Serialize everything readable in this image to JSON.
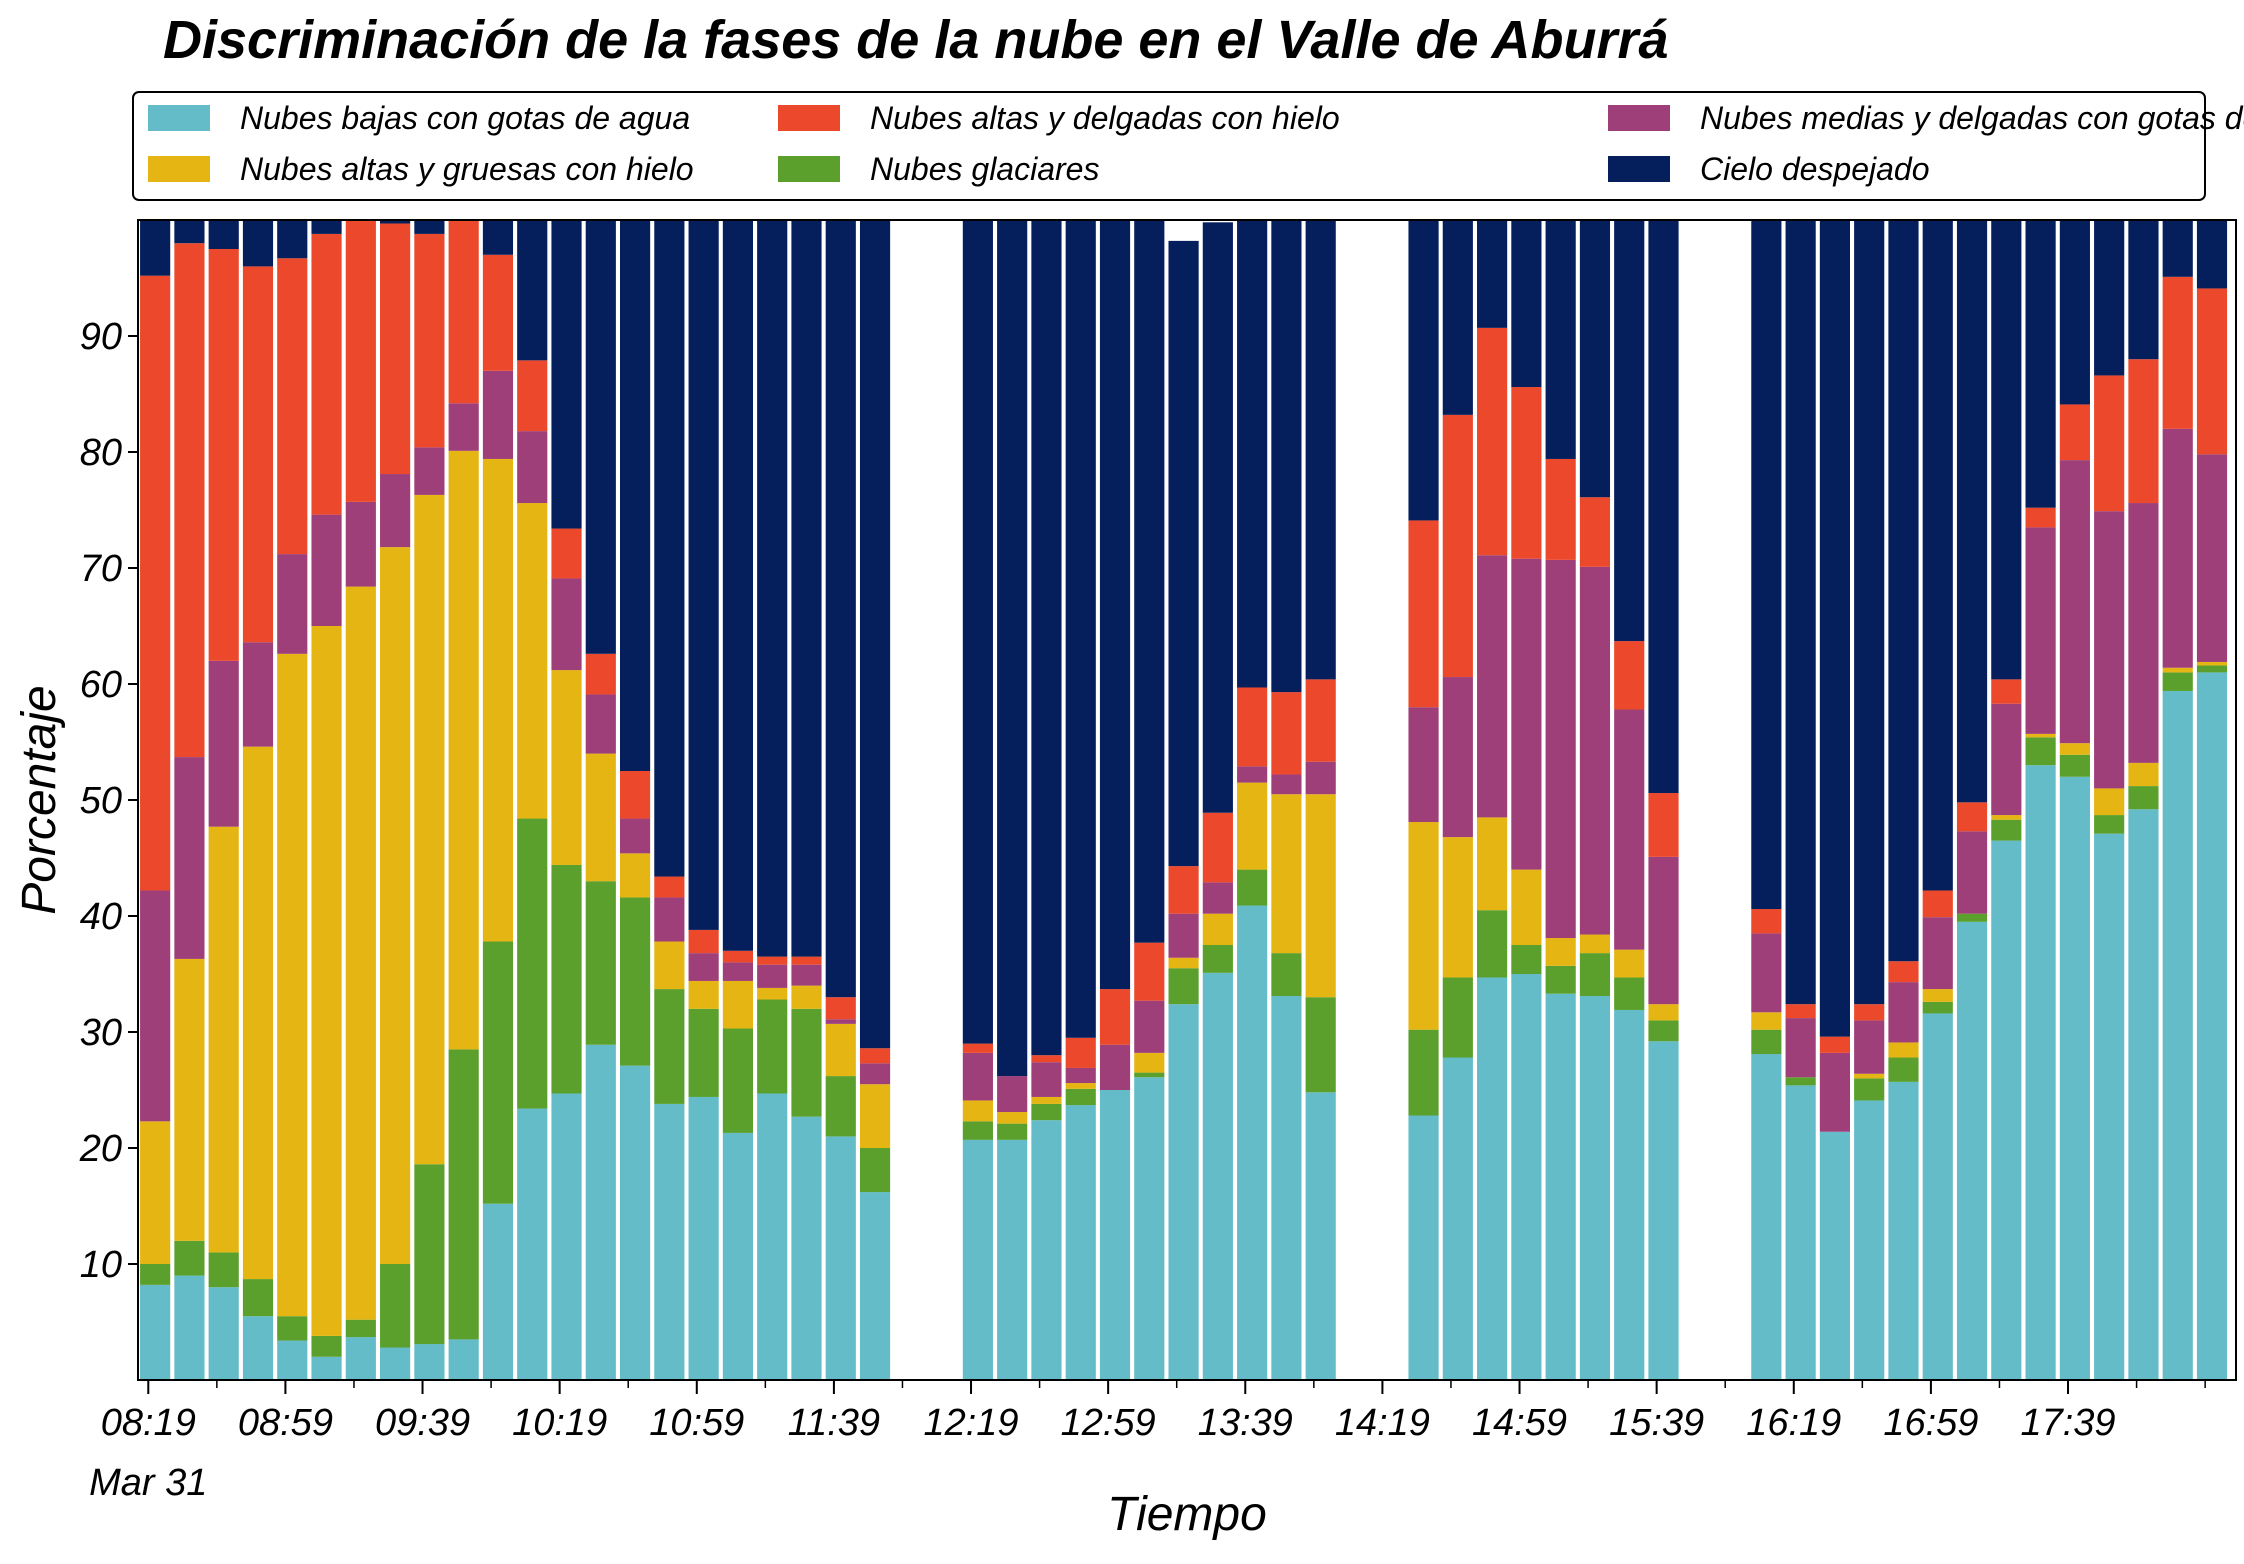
{
  "chart_data": {
    "type": "bar",
    "stacked": true,
    "title": "Discriminación de la fases de la nube en el Valle de Aburrá",
    "xlabel": "Tiempo",
    "ylabel": "Porcentaje",
    "ylim": [
      0,
      100
    ],
    "yticks": [
      10,
      20,
      30,
      40,
      50,
      60,
      70,
      80,
      90
    ],
    "x_start_minutes": 499,
    "x_end_minutes": 1082,
    "bar_interval_minutes": 10,
    "xticks": [
      {
        "label": "08:19",
        "minute": 499
      },
      {
        "label": "08:59",
        "minute": 539
      },
      {
        "label": "09:39",
        "minute": 579
      },
      {
        "label": "10:19",
        "minute": 619
      },
      {
        "label": "10:59",
        "minute": 659
      },
      {
        "label": "11:39",
        "minute": 699
      },
      {
        "label": "12:19",
        "minute": 739
      },
      {
        "label": "12:59",
        "minute": 779
      },
      {
        "label": "13:39",
        "minute": 819
      },
      {
        "label": "14:19",
        "minute": 859
      },
      {
        "label": "14:59",
        "minute": 899
      },
      {
        "label": "15:39",
        "minute": 939
      },
      {
        "label": "16:19",
        "minute": 979
      },
      {
        "label": "16:59",
        "minute": 1019
      },
      {
        "label": "17:39",
        "minute": 1059
      }
    ],
    "date_label": "Mar 31",
    "legend_position": "top",
    "grid": false,
    "series_info": [
      {
        "name": "Nubes bajas con gotas de agua",
        "color": "#63BCC8"
      },
      {
        "name": "Nubes glaciares",
        "color": "#5BA02C"
      },
      {
        "name": "Nubes altas y gruesas con hielo",
        "color": "#E4B513"
      },
      {
        "name": "Nubes medias y delgadas con gotas de agua",
        "color": "#9E3F79"
      },
      {
        "name": "Nubes altas y delgadas con hielo",
        "color": "#EC482B"
      },
      {
        "name": "Cielo despejado",
        "color": "#051F5C"
      }
    ],
    "legend_order": [
      0,
      2,
      4,
      1,
      3,
      5
    ],
    "bars": [
      {
        "minute": 501,
        "values": [
          8.2,
          1.8,
          12.3,
          19.9,
          53.0,
          4.8
        ]
      },
      {
        "minute": 511,
        "values": [
          9.0,
          3.0,
          24.3,
          17.4,
          44.3,
          2.0
        ]
      },
      {
        "minute": 521,
        "values": [
          8.0,
          3.0,
          36.7,
          14.3,
          35.5,
          2.5
        ]
      },
      {
        "minute": 531,
        "values": [
          5.5,
          3.2,
          45.9,
          9.0,
          32.4,
          4.0
        ]
      },
      {
        "minute": 541,
        "values": [
          3.4,
          2.1,
          57.1,
          8.6,
          25.5,
          3.3
        ]
      },
      {
        "minute": 551,
        "values": [
          2.0,
          1.8,
          61.2,
          9.6,
          24.2,
          1.2
        ]
      },
      {
        "minute": 561,
        "values": [
          3.7,
          1.5,
          63.2,
          7.3,
          24.3,
          0.0
        ]
      },
      {
        "minute": 571,
        "values": [
          2.8,
          7.2,
          61.8,
          6.3,
          21.6,
          0.3
        ]
      },
      {
        "minute": 581,
        "values": [
          3.1,
          15.5,
          57.7,
          4.1,
          18.4,
          1.2
        ]
      },
      {
        "minute": 591,
        "values": [
          3.5,
          25.0,
          51.6,
          4.1,
          15.8,
          0.0
        ]
      },
      {
        "minute": 601,
        "values": [
          15.2,
          22.6,
          41.6,
          7.6,
          10.0,
          3.0
        ]
      },
      {
        "minute": 611,
        "values": [
          23.4,
          25.0,
          27.2,
          6.2,
          6.1,
          12.1
        ]
      },
      {
        "minute": 621,
        "values": [
          24.7,
          19.7,
          16.8,
          7.9,
          4.3,
          26.6
        ]
      },
      {
        "minute": 631,
        "values": [
          28.9,
          14.1,
          11.0,
          5.1,
          3.5,
          37.4
        ]
      },
      {
        "minute": 641,
        "values": [
          27.1,
          14.5,
          3.8,
          3.0,
          4.1,
          47.5
        ]
      },
      {
        "minute": 651,
        "values": [
          23.8,
          9.9,
          4.1,
          3.8,
          1.8,
          56.6
        ]
      },
      {
        "minute": 661,
        "values": [
          24.4,
          7.6,
          2.4,
          2.4,
          2.0,
          61.2
        ]
      },
      {
        "minute": 671,
        "values": [
          21.3,
          9.0,
          4.1,
          1.6,
          1.0,
          63.0
        ]
      },
      {
        "minute": 681,
        "values": [
          24.7,
          8.1,
          1.0,
          2.0,
          0.7,
          63.5
        ]
      },
      {
        "minute": 691,
        "values": [
          22.7,
          9.3,
          2.0,
          1.8,
          0.7,
          63.5
        ]
      },
      {
        "minute": 701,
        "values": [
          21.0,
          5.2,
          4.5,
          0.4,
          1.9,
          67.0
        ]
      },
      {
        "minute": 711,
        "values": [
          16.2,
          3.8,
          5.5,
          1.8,
          1.3,
          71.4
        ]
      },
      {
        "minute": 741,
        "values": [
          20.7,
          1.6,
          1.8,
          4.1,
          0.8,
          71.0
        ]
      },
      {
        "minute": 751,
        "values": [
          20.7,
          1.4,
          1.0,
          3.1,
          0.0,
          73.8
        ]
      },
      {
        "minute": 761,
        "values": [
          22.4,
          1.4,
          0.6,
          3.0,
          0.6,
          72.0
        ]
      },
      {
        "minute": 771,
        "values": [
          23.7,
          1.4,
          0.5,
          1.3,
          2.6,
          70.5
        ]
      },
      {
        "minute": 781,
        "values": [
          25.0,
          0.0,
          0.0,
          3.9,
          4.8,
          66.3
        ]
      },
      {
        "minute": 791,
        "values": [
          26.1,
          0.4,
          1.7,
          4.5,
          5.0,
          62.3
        ]
      },
      {
        "minute": 801,
        "values": [
          32.4,
          3.1,
          0.9,
          3.8,
          4.1,
          53.9
        ]
      },
      {
        "minute": 811,
        "values": [
          35.1,
          2.4,
          2.7,
          2.7,
          6.0,
          50.9
        ]
      },
      {
        "minute": 821,
        "values": [
          40.9,
          3.1,
          7.5,
          1.4,
          6.8,
          40.3
        ]
      },
      {
        "minute": 831,
        "values": [
          33.1,
          3.7,
          13.7,
          1.7,
          7.1,
          40.7
        ]
      },
      {
        "minute": 841,
        "values": [
          24.8,
          8.2,
          17.5,
          2.8,
          7.1,
          39.6
        ]
      },
      {
        "minute": 871,
        "values": [
          22.8,
          7.4,
          17.9,
          9.9,
          16.1,
          25.9
        ]
      },
      {
        "minute": 881,
        "values": [
          27.8,
          6.9,
          12.1,
          13.8,
          22.6,
          16.8
        ]
      },
      {
        "minute": 891,
        "values": [
          34.7,
          5.8,
          8.0,
          22.6,
          19.6,
          9.3
        ]
      },
      {
        "minute": 901,
        "values": [
          35.0,
          2.5,
          6.5,
          26.8,
          14.8,
          14.4
        ]
      },
      {
        "minute": 911,
        "values": [
          33.3,
          2.4,
          2.4,
          32.6,
          8.7,
          20.6
        ]
      },
      {
        "minute": 921,
        "values": [
          33.1,
          3.7,
          1.6,
          31.7,
          6.0,
          23.9
        ]
      },
      {
        "minute": 931,
        "values": [
          31.9,
          2.8,
          2.4,
          20.7,
          5.9,
          36.3
        ]
      },
      {
        "minute": 941,
        "values": [
          29.2,
          1.8,
          1.4,
          12.7,
          5.5,
          49.4
        ]
      },
      {
        "minute": 971,
        "values": [
          28.1,
          2.1,
          1.5,
          6.8,
          2.1,
          59.4
        ]
      },
      {
        "minute": 981,
        "values": [
          25.4,
          0.7,
          0.0,
          5.1,
          1.2,
          67.6
        ]
      },
      {
        "minute": 991,
        "values": [
          21.4,
          0.0,
          0.0,
          6.8,
          1.4,
          70.4
        ]
      },
      {
        "minute": 1001,
        "values": [
          24.1,
          1.9,
          0.4,
          4.6,
          1.4,
          67.6
        ]
      },
      {
        "minute": 1011,
        "values": [
          25.7,
          2.1,
          1.3,
          5.2,
          1.8,
          63.9
        ]
      },
      {
        "minute": 1021,
        "values": [
          31.6,
          1.0,
          1.1,
          6.2,
          2.3,
          57.8
        ]
      },
      {
        "minute": 1031,
        "values": [
          39.5,
          0.7,
          0.0,
          7.1,
          2.5,
          50.2
        ]
      },
      {
        "minute": 1041,
        "values": [
          46.5,
          1.8,
          0.4,
          9.6,
          2.1,
          39.6
        ]
      },
      {
        "minute": 1051,
        "values": [
          53.0,
          2.4,
          0.3,
          17.8,
          1.7,
          24.8
        ]
      },
      {
        "minute": 1061,
        "values": [
          52.0,
          1.9,
          1.0,
          24.4,
          4.8,
          15.9
        ]
      },
      {
        "minute": 1071,
        "values": [
          47.1,
          1.6,
          2.3,
          23.9,
          11.7,
          13.4
        ]
      },
      {
        "minute": 1081,
        "values": [
          49.2,
          2.0,
          2.0,
          22.4,
          12.4,
          12.0
        ]
      },
      {
        "minute": 1091,
        "values": [
          59.4,
          1.6,
          0.4,
          20.6,
          13.1,
          4.9
        ]
      },
      {
        "minute": 1101,
        "values": [
          61.0,
          0.6,
          0.3,
          17.9,
          14.3,
          5.9
        ]
      }
    ]
  }
}
